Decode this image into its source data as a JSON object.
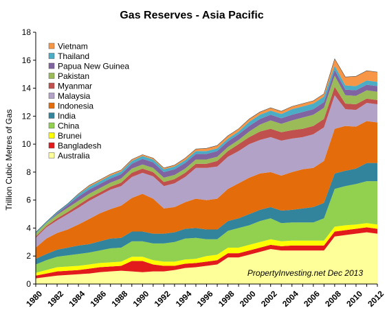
{
  "chart_data": {
    "type": "area",
    "stacked": true,
    "title": "Gas Reserves - Asia Pacific",
    "xlabel": "",
    "ylabel": "Trillion Cubic Metres of Gas",
    "ylim": [
      0,
      18
    ],
    "y_ticks": [
      "0",
      "2",
      "4",
      "6",
      "8",
      "10",
      "12",
      "14",
      "16",
      "18"
    ],
    "x": [
      1980,
      1981,
      1982,
      1983,
      1984,
      1985,
      1986,
      1987,
      1988,
      1989,
      1990,
      1991,
      1992,
      1993,
      1994,
      1995,
      1996,
      1997,
      1998,
      1999,
      2000,
      2001,
      2002,
      2003,
      2004,
      2005,
      2006,
      2007,
      2008,
      2009,
      2010,
      2011,
      2012
    ],
    "x_ticks": [
      "1980",
      "1982",
      "1984",
      "1986",
      "1988",
      "1990",
      "1992",
      "1994",
      "1996",
      "1998",
      "2000",
      "2002",
      "2004",
      "2006",
      "2008",
      "2010",
      "2012"
    ],
    "grid": false,
    "legend_position": "top-left",
    "annotation": "PropertyInvesting.net  Dec 2013",
    "series": [
      {
        "name": "Australia",
        "color": "#FFFF99",
        "values": [
          0.4,
          0.5,
          0.6,
          0.65,
          0.7,
          0.75,
          0.85,
          0.9,
          0.95,
          0.9,
          0.85,
          0.9,
          0.9,
          1.0,
          1.15,
          1.2,
          1.3,
          1.4,
          1.9,
          1.9,
          2.1,
          2.3,
          2.5,
          2.4,
          2.4,
          2.4,
          2.4,
          2.4,
          3.4,
          3.5,
          3.6,
          3.7,
          3.6
        ]
      },
      {
        "name": "Bangladesh",
        "color": "#E31A1C",
        "values": [
          0.2,
          0.25,
          0.3,
          0.3,
          0.3,
          0.35,
          0.35,
          0.35,
          0.35,
          0.75,
          0.8,
          0.5,
          0.4,
          0.3,
          0.3,
          0.3,
          0.3,
          0.3,
          0.3,
          0.3,
          0.3,
          0.3,
          0.3,
          0.3,
          0.35,
          0.35,
          0.35,
          0.35,
          0.35,
          0.35,
          0.35,
          0.35,
          0.35
        ]
      },
      {
        "name": "Brunei",
        "color": "#FFFF00",
        "values": [
          0.2,
          0.25,
          0.3,
          0.3,
          0.3,
          0.3,
          0.3,
          0.3,
          0.3,
          0.3,
          0.3,
          0.3,
          0.3,
          0.3,
          0.3,
          0.3,
          0.4,
          0.4,
          0.4,
          0.4,
          0.4,
          0.4,
          0.4,
          0.35,
          0.35,
          0.35,
          0.35,
          0.35,
          0.35,
          0.35,
          0.3,
          0.3,
          0.3
        ]
      },
      {
        "name": "China",
        "color": "#92D050",
        "values": [
          0.6,
          0.7,
          0.75,
          0.8,
          0.85,
          0.85,
          0.9,
          1.0,
          1.0,
          1.1,
          1.1,
          1.2,
          1.3,
          1.4,
          1.5,
          1.5,
          1.2,
          1.1,
          1.2,
          1.4,
          1.4,
          1.5,
          1.5,
          1.3,
          1.3,
          1.3,
          1.3,
          1.6,
          2.7,
          2.8,
          2.9,
          3.0,
          3.1
        ]
      },
      {
        "name": "India",
        "color": "#31849B",
        "values": [
          0.4,
          0.45,
          0.5,
          0.55,
          0.6,
          0.6,
          0.65,
          0.7,
          0.7,
          0.7,
          0.7,
          0.7,
          0.7,
          0.7,
          0.7,
          0.7,
          0.7,
          0.7,
          0.7,
          0.7,
          0.8,
          0.8,
          0.8,
          0.9,
          0.9,
          1.0,
          1.1,
          1.1,
          1.1,
          1.1,
          1.1,
          1.3,
          1.3
        ]
      },
      {
        "name": "Indonesia",
        "color": "#E46C0A",
        "values": [
          0.8,
          1.1,
          1.2,
          1.3,
          1.5,
          1.8,
          2.0,
          2.1,
          2.3,
          2.4,
          2.7,
          2.5,
          1.8,
          1.8,
          1.9,
          2.1,
          2.1,
          2.2,
          2.3,
          2.5,
          2.6,
          2.6,
          2.5,
          2.5,
          2.7,
          2.8,
          2.8,
          3.0,
          3.2,
          3.2,
          3.0,
          3.0,
          2.9
        ]
      },
      {
        "name": "Malaysia",
        "color": "#B3A2C7",
        "values": [
          0.7,
          0.8,
          0.9,
          1.1,
          1.2,
          1.3,
          1.3,
          1.4,
          1.4,
          1.5,
          1.5,
          1.6,
          1.6,
          1.7,
          1.8,
          2.2,
          2.3,
          2.3,
          2.3,
          2.3,
          2.4,
          2.4,
          2.5,
          2.5,
          2.4,
          2.3,
          2.4,
          2.4,
          2.4,
          1.2,
          1.2,
          1.3,
          1.3
        ]
      },
      {
        "name": "Myanmar",
        "color": "#C0504D",
        "values": [
          0.1,
          0.1,
          0.15,
          0.15,
          0.2,
          0.2,
          0.2,
          0.2,
          0.25,
          0.3,
          0.3,
          0.3,
          0.3,
          0.3,
          0.3,
          0.3,
          0.3,
          0.4,
          0.4,
          0.5,
          0.5,
          0.6,
          0.6,
          0.6,
          0.6,
          0.6,
          0.6,
          0.6,
          0.6,
          0.4,
          0.4,
          0.3,
          0.3
        ]
      },
      {
        "name": "Pakistan",
        "color": "#9BBB59",
        "values": [
          0.2,
          0.2,
          0.25,
          0.3,
          0.3,
          0.3,
          0.3,
          0.3,
          0.3,
          0.3,
          0.3,
          0.3,
          0.3,
          0.3,
          0.3,
          0.3,
          0.3,
          0.3,
          0.3,
          0.3,
          0.4,
          0.5,
          0.6,
          0.6,
          0.7,
          0.8,
          0.8,
          0.8,
          0.8,
          0.6,
          0.6,
          0.6,
          0.6
        ]
      },
      {
        "name": "Papua New Guinea",
        "color": "#8064A2",
        "values": [
          0.0,
          0.0,
          0.1,
          0.2,
          0.3,
          0.3,
          0.3,
          0.3,
          0.3,
          0.35,
          0.4,
          0.4,
          0.4,
          0.4,
          0.4,
          0.4,
          0.4,
          0.4,
          0.4,
          0.4,
          0.4,
          0.4,
          0.4,
          0.4,
          0.4,
          0.4,
          0.4,
          0.4,
          0.4,
          0.4,
          0.4,
          0.4,
          0.4
        ]
      },
      {
        "name": "Thailand",
        "color": "#4BACC6",
        "values": [
          0.1,
          0.1,
          0.1,
          0.1,
          0.15,
          0.2,
          0.2,
          0.2,
          0.2,
          0.2,
          0.2,
          0.2,
          0.2,
          0.2,
          0.2,
          0.2,
          0.2,
          0.2,
          0.2,
          0.2,
          0.3,
          0.3,
          0.3,
          0.3,
          0.4,
          0.4,
          0.4,
          0.4,
          0.3,
          0.3,
          0.3,
          0.3,
          0.3
        ]
      },
      {
        "name": "Vietnam",
        "color": "#F79646",
        "values": [
          0.0,
          0.0,
          0.0,
          0.0,
          0.05,
          0.1,
          0.1,
          0.1,
          0.1,
          0.1,
          0.1,
          0.1,
          0.1,
          0.1,
          0.15,
          0.15,
          0.2,
          0.2,
          0.2,
          0.2,
          0.2,
          0.2,
          0.2,
          0.2,
          0.2,
          0.2,
          0.2,
          0.2,
          0.5,
          0.6,
          0.7,
          0.7,
          0.7
        ]
      }
    ]
  }
}
